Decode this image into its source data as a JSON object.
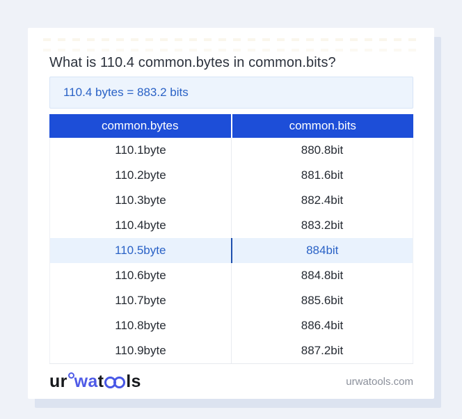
{
  "title": "What is 110.4 common.bytes in common.bits?",
  "result": {
    "text": "110.4 bytes = 883.2 bits"
  },
  "table": {
    "headers": [
      "common.bytes",
      "common.bits"
    ],
    "rows": [
      {
        "left": "110.1byte",
        "right": "880.8bit",
        "highlighted": false
      },
      {
        "left": "110.2byte",
        "right": "881.6bit",
        "highlighted": false
      },
      {
        "left": "110.3byte",
        "right": "882.4bit",
        "highlighted": false
      },
      {
        "left": "110.4byte",
        "right": "883.2bit",
        "highlighted": false
      },
      {
        "left": "110.5byte",
        "right": "884bit",
        "highlighted": true
      },
      {
        "left": "110.6byte",
        "right": "884.8bit",
        "highlighted": false
      },
      {
        "left": "110.7byte",
        "right": "885.6bit",
        "highlighted": false
      },
      {
        "left": "110.8byte",
        "right": "886.4bit",
        "highlighted": false
      },
      {
        "left": "110.9byte",
        "right": "887.2bit",
        "highlighted": false
      }
    ]
  },
  "footer": {
    "logo": {
      "part_ur": "ur",
      "part_wa": "wa",
      "part_t": "t",
      "part_ls": "ls"
    },
    "site_label": "urwatools.com"
  },
  "colors": {
    "page_bg": "#eff2f8",
    "card_shadow": "#dce3f0",
    "header_blue": "#1d4ed8",
    "link_blue": "#2a62c6",
    "highlight_bg": "#e9f2fd",
    "highlight_divider": "#1e4fae",
    "result_bg": "#edf4fd",
    "result_border": "#d7e4f6",
    "logo_blue": "#4f5be7",
    "footer_text": "#8b909b"
  }
}
